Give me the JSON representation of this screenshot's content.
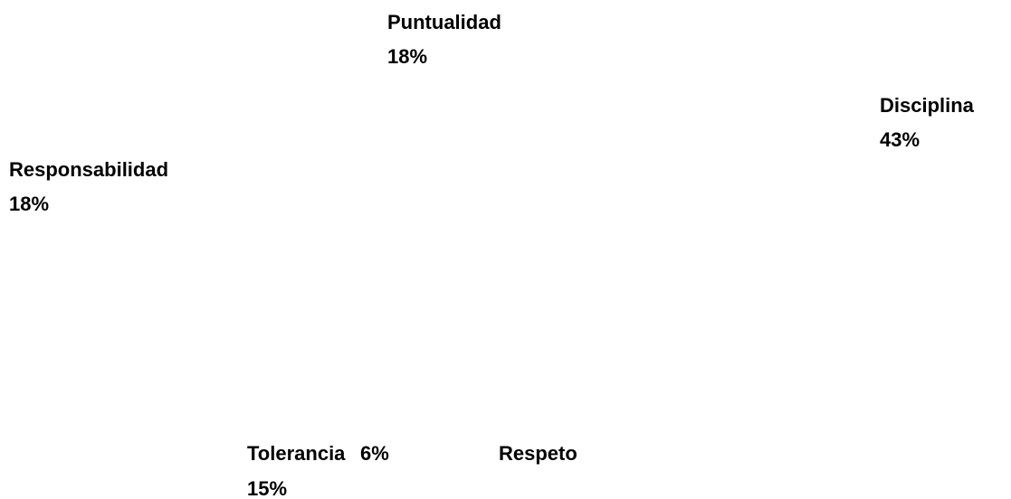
{
  "chart_data": {
    "type": "pie",
    "categories": [
      "Disciplina",
      "Respeto",
      "Tolerancia",
      "Responsabilidad",
      "Puntualidad"
    ],
    "values": [
      43,
      15,
      6,
      18,
      18
    ],
    "value_labels": [
      "43%",
      "15%",
      "6%",
      "18%",
      "18%"
    ],
    "color": "#ffffff"
  }
}
